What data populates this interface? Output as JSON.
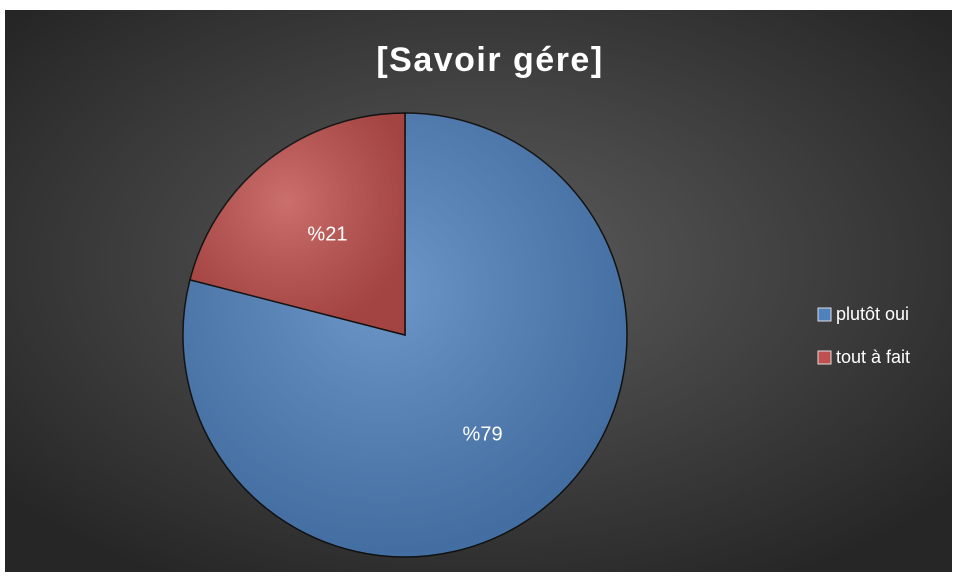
{
  "chart_data": {
    "type": "pie",
    "title": "[Savoir gére]",
    "categories": [
      "plutôt oui",
      "tout à fait"
    ],
    "values": [
      79,
      21
    ],
    "value_labels": [
      "%79",
      "%21"
    ],
    "colors": [
      "#4f81bd",
      "#c0504d"
    ],
    "legend": "right"
  }
}
